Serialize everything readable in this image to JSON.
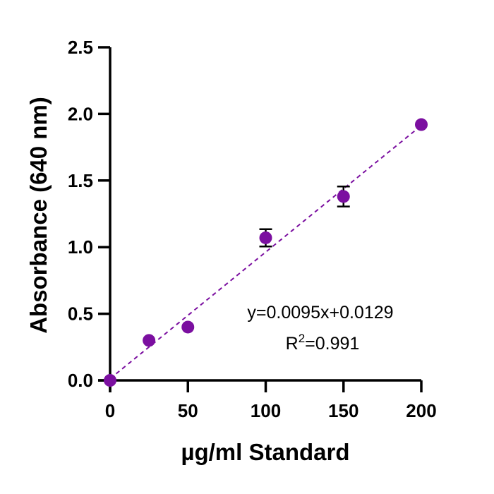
{
  "chart_data": {
    "type": "scatter",
    "xlabel": "µg/ml Standard",
    "ylabel": "Absorbance (640 nm)",
    "xlim": [
      0,
      200
    ],
    "ylim": [
      0,
      2.5
    ],
    "x_ticks": [
      "0",
      "50",
      "100",
      "150",
      "200"
    ],
    "y_ticks": [
      "0.0",
      "0.5",
      "1.0",
      "1.5",
      "2.0",
      "2.5"
    ],
    "grid": false,
    "series": [
      {
        "color": "#7B0FA0",
        "points": [
          {
            "x": 0,
            "y": 0.0,
            "err": 0
          },
          {
            "x": 25,
            "y": 0.3,
            "err": 0
          },
          {
            "x": 50,
            "y": 0.4,
            "err": 0
          },
          {
            "x": 100,
            "y": 1.07,
            "err": 0.065
          },
          {
            "x": 150,
            "y": 1.38,
            "err": 0.075
          },
          {
            "x": 200,
            "y": 1.92,
            "err": 0
          }
        ]
      }
    ],
    "fit_line": {
      "slope": 0.0095,
      "intercept": 0.0129,
      "x_range": [
        0,
        200
      ],
      "style": "dashed",
      "color": "#7B0FA0"
    },
    "annotations": {
      "equation": "y=0.0095x+0.0129",
      "r2_prefix": "R",
      "r2_sup": "2",
      "r2_value": "=0.991"
    }
  }
}
